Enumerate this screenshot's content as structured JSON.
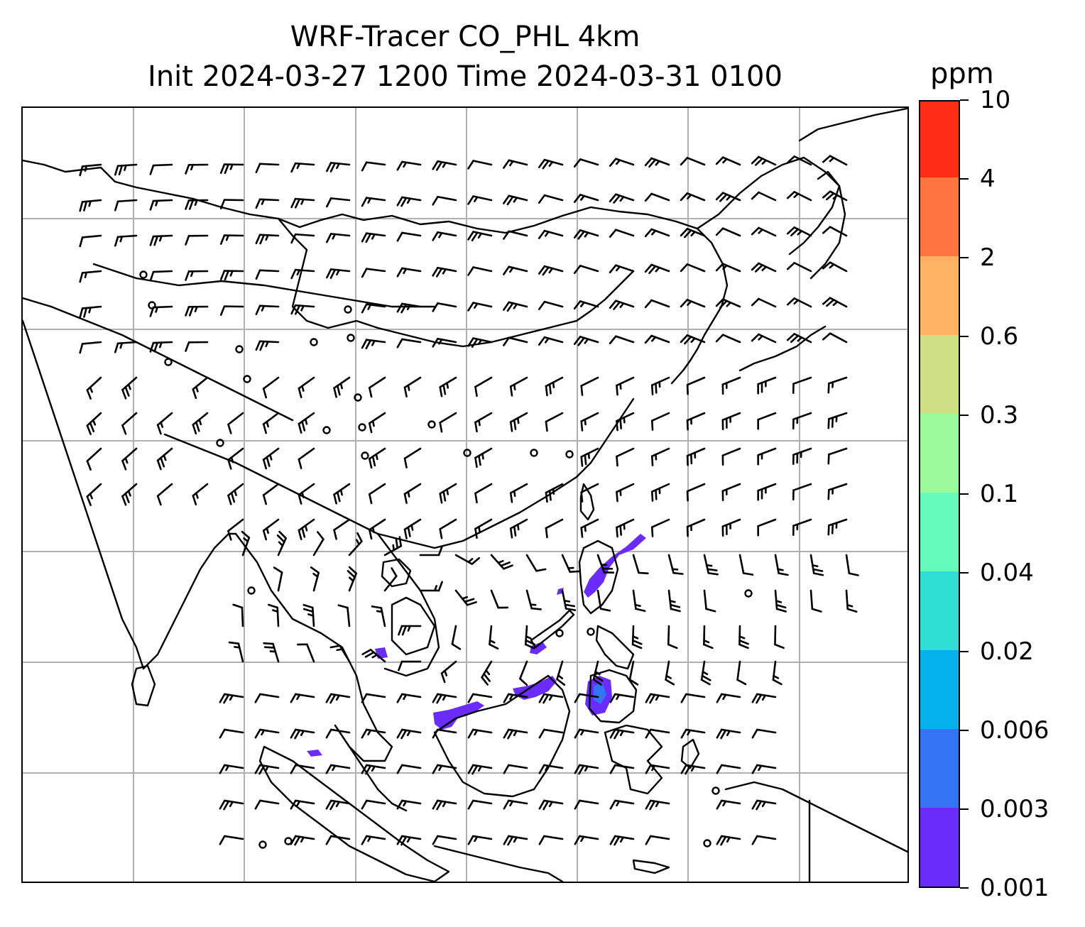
{
  "title": {
    "line1": "WRF-Tracer CO_PHL 4km",
    "line2": "Init 2024-03-27 1200 Time 2024-03-31 0100"
  },
  "colorbar": {
    "unit": "ppm",
    "levels": [
      "0.001",
      "0.003",
      "0.006",
      "0.02",
      "0.04",
      "0.1",
      "0.3",
      "0.6",
      "2",
      "4",
      "10"
    ],
    "colors": [
      "#6a2cfb",
      "#3474f4",
      "#04b2ea",
      "#2edfd3",
      "#64fbbc",
      "#9cfa9a",
      "#cce183",
      "#fcb462",
      "#ff7440",
      "#ff2e14"
    ]
  },
  "map": {
    "projection": "Lambert-style regional domain (East/Southeast Asia)",
    "gridlines": true,
    "gridline_color": "#b0b0b0",
    "coastline_color": "#000000",
    "wind_barbs": true,
    "tracer_fill_color": "#6a2cfb",
    "tracer_core_color": "#3474f4"
  }
}
